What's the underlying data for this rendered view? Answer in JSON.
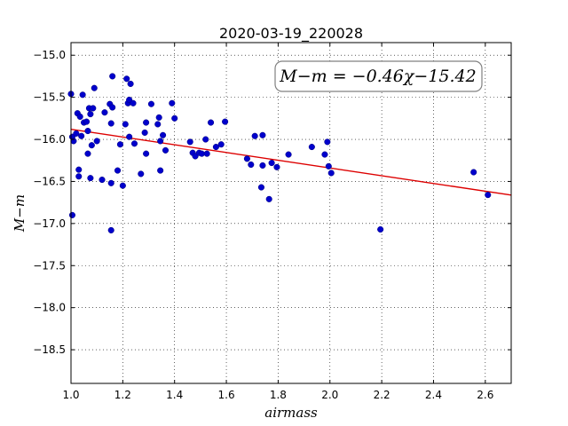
{
  "chart_data": {
    "type": "scatter",
    "title": "2020-03-19_220028",
    "xlabel": "airmass",
    "ylabel": "M−m",
    "xlim": [
      1.0,
      2.7
    ],
    "ylim": [
      -18.9,
      -14.85
    ],
    "xticks": [
      1.0,
      1.2,
      1.4,
      1.6,
      1.8,
      2.0,
      2.2,
      2.4,
      2.6
    ],
    "xtick_labels": [
      "1.0",
      "1.2",
      "1.4",
      "1.6",
      "1.8",
      "2.0",
      "2.2",
      "2.4",
      "2.6"
    ],
    "yticks": [
      -15.0,
      -15.5,
      -16.0,
      -16.5,
      -17.0,
      -17.5,
      -18.0,
      -18.5
    ],
    "ytick_labels": [
      "−15.0",
      "−15.5",
      "−16.0",
      "−16.5",
      "−17.0",
      "−17.5",
      "−18.0",
      "−18.5"
    ],
    "grid": true,
    "point_color": "#0000cc",
    "fit_color": "#dd0000",
    "annotation": "M−m = −0.46χ−15.42",
    "annotation_position": "top-right",
    "fit": {
      "slope": -0.46,
      "intercept": -15.42,
      "x_range": [
        1.0,
        2.7
      ]
    },
    "points": [
      [
        1.0,
        -15.46
      ],
      [
        1.005,
        -15.97
      ],
      [
        1.01,
        -16.02
      ],
      [
        1.005,
        -16.9
      ],
      [
        1.02,
        -15.93
      ],
      [
        1.025,
        -15.69
      ],
      [
        1.035,
        -15.73
      ],
      [
        1.045,
        -15.47
      ],
      [
        1.05,
        -15.8
      ],
      [
        1.06,
        -15.79
      ],
      [
        1.065,
        -15.9
      ],
      [
        1.07,
        -15.63
      ],
      [
        1.075,
        -15.7
      ],
      [
        1.08,
        -16.07
      ],
      [
        1.085,
        -15.63
      ],
      [
        1.09,
        -15.39
      ],
      [
        1.1,
        -16.02
      ],
      [
        1.03,
        -16.36
      ],
      [
        1.03,
        -16.44
      ],
      [
        1.04,
        -15.96
      ],
      [
        1.065,
        -16.17
      ],
      [
        1.075,
        -16.46
      ],
      [
        1.12,
        -16.48
      ],
      [
        1.13,
        -15.68
      ],
      [
        1.15,
        -15.58
      ],
      [
        1.155,
        -15.81
      ],
      [
        1.16,
        -15.62
      ],
      [
        1.16,
        -15.25
      ],
      [
        1.155,
        -16.52
      ],
      [
        1.155,
        -17.08
      ],
      [
        1.18,
        -16.37
      ],
      [
        1.19,
        -16.06
      ],
      [
        1.2,
        -16.55
      ],
      [
        1.21,
        -15.82
      ],
      [
        1.215,
        -15.28
      ],
      [
        1.22,
        -15.57
      ],
      [
        1.225,
        -15.53
      ],
      [
        1.225,
        -15.97
      ],
      [
        1.23,
        -15.34
      ],
      [
        1.24,
        -15.57
      ],
      [
        1.245,
        -16.05
      ],
      [
        1.27,
        -16.41
      ],
      [
        1.285,
        -15.92
      ],
      [
        1.29,
        -16.17
      ],
      [
        1.29,
        -15.8
      ],
      [
        1.31,
        -15.58
      ],
      [
        1.335,
        -15.82
      ],
      [
        1.34,
        -15.74
      ],
      [
        1.345,
        -16.02
      ],
      [
        1.345,
        -16.37
      ],
      [
        1.355,
        -15.95
      ],
      [
        1.365,
        -16.13
      ],
      [
        1.39,
        -15.57
      ],
      [
        1.4,
        -15.75
      ],
      [
        1.46,
        -16.03
      ],
      [
        1.47,
        -16.16
      ],
      [
        1.48,
        -16.2
      ],
      [
        1.495,
        -16.16
      ],
      [
        1.505,
        -16.17
      ],
      [
        1.52,
        -16.0
      ],
      [
        1.525,
        -16.17
      ],
      [
        1.54,
        -15.8
      ],
      [
        1.56,
        -16.09
      ],
      [
        1.58,
        -16.06
      ],
      [
        1.595,
        -15.79
      ],
      [
        1.68,
        -16.23
      ],
      [
        1.695,
        -16.3
      ],
      [
        1.71,
        -15.96
      ],
      [
        1.735,
        -16.57
      ],
      [
        1.74,
        -16.31
      ],
      [
        1.74,
        -15.95
      ],
      [
        1.765,
        -16.71
      ],
      [
        1.775,
        -16.28
      ],
      [
        1.795,
        -16.33
      ],
      [
        1.84,
        -16.18
      ],
      [
        1.93,
        -16.09
      ],
      [
        1.98,
        -16.18
      ],
      [
        1.99,
        -16.03
      ],
      [
        1.995,
        -16.32
      ],
      [
        2.005,
        -16.4
      ],
      [
        2.195,
        -17.07
      ],
      [
        2.555,
        -16.39
      ],
      [
        2.61,
        -16.66
      ]
    ]
  }
}
